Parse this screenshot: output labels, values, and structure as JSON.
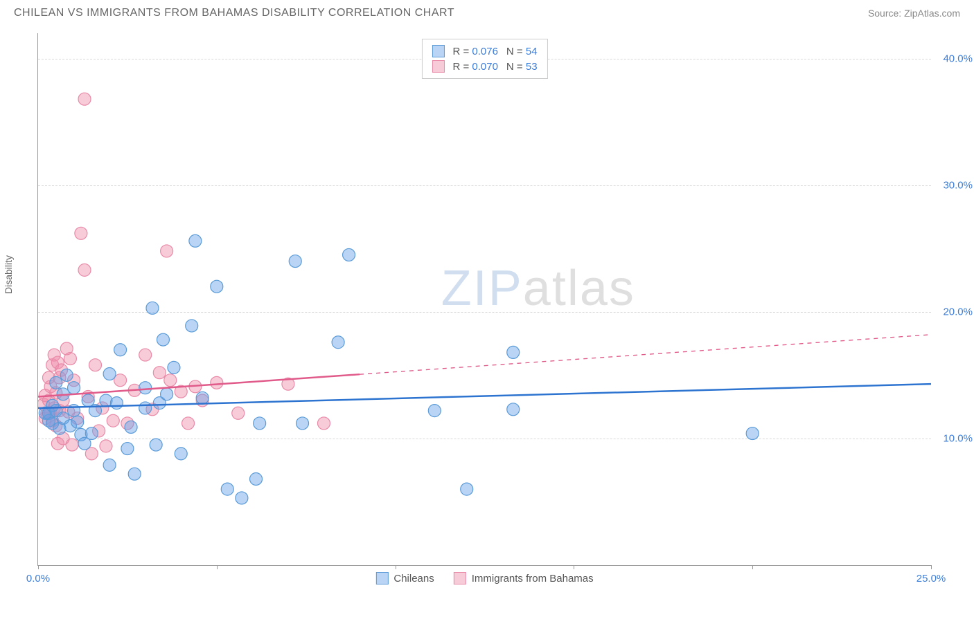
{
  "header": {
    "title": "CHILEAN VS IMMIGRANTS FROM BAHAMAS DISABILITY CORRELATION CHART",
    "source": "Source: ZipAtlas.com"
  },
  "axes": {
    "y_label": "Disability",
    "x_min": 0.0,
    "x_max": 25.0,
    "y_min": 0.0,
    "y_max": 42.0,
    "y_gridlines": [
      10.0,
      20.0,
      30.0,
      40.0
    ],
    "y_tick_labels": [
      "10.0%",
      "20.0%",
      "30.0%",
      "40.0%"
    ],
    "x_ticks": [
      0.0,
      5.0,
      10.0,
      15.0,
      20.0,
      25.0
    ],
    "x_tick_labels_shown": {
      "0.0": "0.0%",
      "25.0": "25.0%"
    }
  },
  "colors": {
    "series_a_fill": "rgba(100,160,230,0.45)",
    "series_a_stroke": "#5a9bd8",
    "series_a_line": "#2d74d0",
    "series_b_fill": "rgba(240,140,170,0.45)",
    "series_b_stroke": "#e88aa8",
    "series_b_line": "#e05a8a",
    "axis_text": "#3b7dd8",
    "grid": "#d8d8d8",
    "border": "#999999",
    "title_text": "#666666",
    "source_text": "#888888",
    "legend_text": "#555555"
  },
  "marker": {
    "radius": 9,
    "stroke_width": 1.2
  },
  "trend_line_width": 2.5,
  "legend_top": {
    "rows": [
      {
        "swatch": "a",
        "r_label": "R = ",
        "r_val": "0.076",
        "n_label": "N = ",
        "n_val": "54"
      },
      {
        "swatch": "b",
        "r_label": "R = ",
        "r_val": "0.070",
        "n_label": "N = ",
        "n_val": "53"
      }
    ]
  },
  "legend_bottom": {
    "items": [
      {
        "swatch": "a",
        "label": "Chileans"
      },
      {
        "swatch": "b",
        "label": "Immigrants from Bahamas"
      }
    ]
  },
  "watermark": {
    "part1": "ZIP",
    "part2": "atlas"
  },
  "series_a": {
    "name": "Chileans",
    "trend": {
      "x1": 0.0,
      "y1": 12.4,
      "x2": 25.0,
      "y2": 14.3,
      "dash_from_x": null
    },
    "points": [
      [
        0.2,
        12.0
      ],
      [
        0.3,
        11.4
      ],
      [
        0.3,
        12.0
      ],
      [
        0.4,
        12.6
      ],
      [
        0.4,
        11.2
      ],
      [
        0.5,
        14.4
      ],
      [
        0.5,
        12.2
      ],
      [
        0.6,
        10.8
      ],
      [
        0.7,
        11.6
      ],
      [
        0.7,
        13.5
      ],
      [
        0.8,
        15.0
      ],
      [
        0.9,
        11.0
      ],
      [
        1.0,
        12.2
      ],
      [
        1.0,
        14.0
      ],
      [
        1.1,
        11.3
      ],
      [
        1.2,
        10.3
      ],
      [
        1.3,
        9.6
      ],
      [
        1.4,
        13.0
      ],
      [
        1.5,
        10.4
      ],
      [
        1.6,
        12.2
      ],
      [
        1.9,
        13.0
      ],
      [
        2.0,
        15.1
      ],
      [
        2.0,
        7.9
      ],
      [
        2.2,
        12.8
      ],
      [
        2.3,
        17.0
      ],
      [
        2.5,
        9.2
      ],
      [
        2.6,
        10.9
      ],
      [
        2.7,
        7.2
      ],
      [
        3.0,
        14.0
      ],
      [
        3.0,
        12.4
      ],
      [
        3.2,
        20.3
      ],
      [
        3.3,
        9.5
      ],
      [
        3.4,
        12.8
      ],
      [
        3.5,
        17.8
      ],
      [
        3.6,
        13.5
      ],
      [
        3.8,
        15.6
      ],
      [
        4.0,
        8.8
      ],
      [
        4.3,
        18.9
      ],
      [
        4.4,
        25.6
      ],
      [
        4.6,
        13.2
      ],
      [
        5.0,
        22.0
      ],
      [
        5.3,
        6.0
      ],
      [
        5.7,
        5.3
      ],
      [
        6.1,
        6.8
      ],
      [
        6.2,
        11.2
      ],
      [
        7.2,
        24.0
      ],
      [
        7.4,
        11.2
      ],
      [
        8.4,
        17.6
      ],
      [
        8.7,
        24.5
      ],
      [
        11.1,
        12.2
      ],
      [
        12.0,
        6.0
      ],
      [
        13.3,
        16.8
      ],
      [
        13.3,
        12.3
      ],
      [
        20.0,
        10.4
      ]
    ]
  },
  "series_b": {
    "name": "Immigrants from Bahamas",
    "trend": {
      "x1": 0.0,
      "y1": 13.3,
      "x2": 25.0,
      "y2": 18.2,
      "dash_from_x": 9.0
    },
    "points": [
      [
        0.15,
        12.7
      ],
      [
        0.2,
        13.4
      ],
      [
        0.2,
        11.6
      ],
      [
        0.25,
        12.0
      ],
      [
        0.3,
        14.8
      ],
      [
        0.3,
        13.0
      ],
      [
        0.35,
        12.0
      ],
      [
        0.35,
        14.1
      ],
      [
        0.4,
        15.8
      ],
      [
        0.4,
        11.4
      ],
      [
        0.45,
        16.6
      ],
      [
        0.45,
        12.4
      ],
      [
        0.5,
        13.6
      ],
      [
        0.5,
        11.0
      ],
      [
        0.55,
        16.0
      ],
      [
        0.55,
        9.6
      ],
      [
        0.6,
        14.8
      ],
      [
        0.6,
        12.2
      ],
      [
        0.65,
        15.4
      ],
      [
        0.7,
        10.0
      ],
      [
        0.7,
        13.0
      ],
      [
        0.8,
        17.1
      ],
      [
        0.85,
        12.1
      ],
      [
        0.9,
        16.3
      ],
      [
        0.95,
        9.5
      ],
      [
        1.0,
        14.6
      ],
      [
        1.1,
        11.6
      ],
      [
        1.2,
        26.2
      ],
      [
        1.3,
        36.8
      ],
      [
        1.3,
        23.3
      ],
      [
        1.4,
        13.3
      ],
      [
        1.5,
        8.8
      ],
      [
        1.6,
        15.8
      ],
      [
        1.7,
        10.6
      ],
      [
        1.8,
        12.4
      ],
      [
        1.9,
        9.4
      ],
      [
        2.1,
        11.4
      ],
      [
        2.3,
        14.6
      ],
      [
        2.5,
        11.2
      ],
      [
        2.7,
        13.8
      ],
      [
        3.0,
        16.6
      ],
      [
        3.2,
        12.3
      ],
      [
        3.4,
        15.2
      ],
      [
        3.6,
        24.8
      ],
      [
        3.7,
        14.6
      ],
      [
        4.0,
        13.7
      ],
      [
        4.2,
        11.2
      ],
      [
        4.4,
        14.1
      ],
      [
        4.6,
        13.0
      ],
      [
        5.0,
        14.4
      ],
      [
        5.6,
        12.0
      ],
      [
        7.0,
        14.3
      ],
      [
        8.0,
        11.2
      ]
    ]
  }
}
